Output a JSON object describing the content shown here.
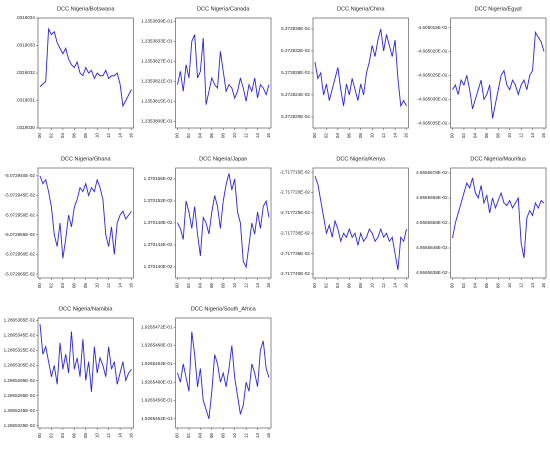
{
  "chart_data": [
    {
      "type": "line",
      "title": "DCC Nigeria/Botswana",
      "categories": [
        "00",
        null,
        null,
        null,
        "02",
        null,
        null,
        null,
        "04",
        null,
        null,
        null,
        "06",
        null,
        null,
        null,
        "08",
        null,
        null,
        null,
        "10",
        null,
        null,
        null,
        "12",
        null,
        null,
        null,
        "14",
        null,
        null,
        null,
        "16"
      ],
      "values": [
        0.03190315,
        0.03190316,
        0.03190317,
        0.03190336,
        0.03190334,
        0.03190335,
        0.03190331,
        0.03190329,
        0.03190327,
        0.03190329,
        0.03190325,
        0.03190323,
        0.03190322,
        0.03190324,
        0.0319032,
        0.03190319,
        0.03190322,
        0.0319032,
        0.03190321,
        0.03190318,
        0.0319032,
        0.03190319,
        0.03190319,
        0.03190321,
        0.03190318,
        0.03190319,
        0.03190319,
        0.0319032,
        0.03190316,
        0.03190308,
        0.0319031,
        0.03190312,
        0.03190314
      ],
      "color": "#2727d8",
      "ylim": [
        0.031903,
        0.0319034
      ],
      "yticks": [
        {
          "value": 0.031903,
          "label": ".0319030"
        },
        {
          "value": 0.0319031,
          "label": ".0319031"
        },
        {
          "value": 0.0319032,
          "label": ".0319032"
        },
        {
          "value": 0.0319033,
          "label": ".0319033"
        },
        {
          "value": 0.0319034,
          "label": ".0319034"
        }
      ]
    },
    {
      "type": "line",
      "title": "DCC Nigeria/Canada",
      "categories": [
        "00",
        null,
        null,
        null,
        "02",
        null,
        null,
        null,
        "04",
        null,
        null,
        null,
        "06",
        null,
        null,
        null,
        "08",
        null,
        null,
        null,
        "10",
        null,
        null,
        null,
        "12",
        null,
        null,
        null,
        "14",
        null,
        null,
        null,
        "16"
      ],
      "values": [
        0.1235382,
        0.12353824,
        0.12353818,
        0.12353826,
        0.12353822,
        0.12353833,
        0.12353835,
        0.12353822,
        0.12353824,
        0.12353834,
        0.12353814,
        0.12353818,
        0.12353822,
        0.1235382,
        0.12353819,
        0.1235383,
        0.12353824,
        0.12353818,
        0.1235382,
        0.12353819,
        0.12353816,
        0.12353818,
        0.12353822,
        0.12353819,
        0.12353815,
        0.1235382,
        0.12353818,
        0.12353822,
        0.12353816,
        0.1235382,
        0.12353819,
        0.12353817,
        0.1235382
      ],
      "color": "#2727d8",
      "ylim": [
        0.12353807,
        0.1235384
      ],
      "yticks": [
        {
          "value": 0.12353809,
          "label": "1.2353809E-01"
        },
        {
          "value": 0.12353815,
          "label": "1.2353815E-01"
        },
        {
          "value": 0.12353821,
          "label": "1.2353821E-01"
        },
        {
          "value": 0.12353827,
          "label": "1.2353827E-01"
        },
        {
          "value": 0.12353833,
          "label": "1.2353833E-01"
        },
        {
          "value": 0.12353839,
          "label": "1.2353839E-01"
        }
      ]
    },
    {
      "type": "line",
      "title": "DCC Nigeria/China",
      "categories": [
        "00",
        null,
        null,
        null,
        "02",
        null,
        null,
        null,
        "04",
        null,
        null,
        null,
        "06",
        null,
        null,
        null,
        "08",
        null,
        null,
        null,
        "10",
        null,
        null,
        null,
        "12",
        null,
        null,
        null,
        "14",
        null,
        null,
        null,
        "16"
      ],
      "values": [
        0.0527283,
        0.05272827,
        0.05272828,
        0.05272824,
        0.05272826,
        0.05272823,
        0.05272825,
        0.05272827,
        0.05272829,
        0.05272825,
        0.05272822,
        0.05272826,
        0.05272824,
        0.05272827,
        0.05272825,
        0.05272823,
        0.05272826,
        0.05272824,
        0.05272828,
        0.0527283,
        0.05272833,
        0.05272831,
        0.05272834,
        0.05272836,
        0.05272832,
        0.05272835,
        0.05272833,
        0.05272831,
        0.05272834,
        0.05272827,
        0.05272822,
        0.05272823,
        0.05272822
      ],
      "color": "#2727d8",
      "ylim": [
        0.05272818,
        0.05272838
      ],
      "yticks": [
        {
          "value": 0.0527282,
          "label": "5.272820E-02"
        },
        {
          "value": 0.05272824,
          "label": "5.272824E-02"
        },
        {
          "value": 0.05272828,
          "label": "5.272828E-02"
        },
        {
          "value": 0.05272832,
          "label": "5.272832E-02"
        },
        {
          "value": 0.05272836,
          "label": "5.272836E-02"
        }
      ]
    },
    {
      "type": "line",
      "title": "DCC Nigeria/Egypt",
      "categories": [
        "00",
        null,
        null,
        null,
        "02",
        null,
        null,
        null,
        "04",
        null,
        null,
        null,
        "06",
        null,
        null,
        null,
        "08",
        null,
        null,
        null,
        "10",
        null,
        null,
        null,
        "12",
        null,
        null,
        null,
        "14",
        null,
        null,
        null,
        "16"
      ],
      "values": [
        -0.04605028,
        -0.04605027,
        -0.04605029,
        -0.04605026,
        -0.04605027,
        -0.04605025,
        -0.04605028,
        -0.04605032,
        -0.0460503,
        -0.04605028,
        -0.04605026,
        -0.0460503,
        -0.04605029,
        -0.04605027,
        -0.04605034,
        -0.04605031,
        -0.04605028,
        -0.04605025,
        -0.04605024,
        -0.04605027,
        -0.04605028,
        -0.04605026,
        -0.04605027,
        -0.04605029,
        -0.04605027,
        -0.04605026,
        -0.04605028,
        -0.04605025,
        -0.04605024,
        -0.04605016,
        -0.04605017,
        -0.04605018,
        -0.0460502
      ],
      "color": "#2727d8",
      "ylim": [
        -0.04605036,
        -0.04605013
      ],
      "yticks": [
        {
          "value": -0.04605035,
          "label": "-4.605035E-02"
        },
        {
          "value": -0.0460503,
          "label": "-4.605030E-02"
        },
        {
          "value": -0.04605025,
          "label": "-4.605025E-02"
        },
        {
          "value": -0.0460502,
          "label": "-4.605020E-02"
        },
        {
          "value": -0.04605015,
          "label": "-4.605015E-02"
        }
      ]
    },
    {
      "type": "line",
      "title": "DCC Nigeria/Ghana",
      "categories": [
        "00",
        null,
        null,
        null,
        "02",
        null,
        null,
        null,
        "04",
        null,
        null,
        null,
        "06",
        null,
        null,
        null,
        "08",
        null,
        null,
        null,
        "10",
        null,
        null,
        null,
        "12",
        null,
        null,
        null,
        "14",
        null,
        null,
        null,
        "16"
      ],
      "values": [
        -0.0507294,
        -0.05072942,
        -0.05072941,
        -0.05072944,
        -0.05072948,
        -0.05072955,
        -0.05072958,
        -0.05072952,
        -0.05072961,
        -0.05072956,
        -0.0507295,
        -0.05072953,
        -0.05072948,
        -0.05072946,
        -0.05072943,
        -0.05072944,
        -0.05072942,
        -0.05072945,
        -0.05072943,
        -0.05072944,
        -0.05072941,
        -0.05072943,
        -0.05072946,
        -0.05072955,
        -0.05072958,
        -0.05072953,
        -0.0507296,
        -0.05072952,
        -0.0507295,
        -0.05072949,
        -0.05072951,
        -0.0507295,
        -0.05072949
      ],
      "color": "#2727d8",
      "ylim": [
        -0.05072966,
        -0.05072938
      ],
      "yticks": [
        {
          "value": -0.05072965,
          "label": "-5.072965E-02"
        },
        {
          "value": -0.0507296,
          "label": "-5.072960E-02"
        },
        {
          "value": -0.05072955,
          "label": "-5.072955E-02"
        },
        {
          "value": -0.0507295,
          "label": "-5.072950E-02"
        },
        {
          "value": -0.05072945,
          "label": "-5.072945E-02"
        },
        {
          "value": -0.0507294,
          "label": "-5.072940E-02"
        }
      ]
    },
    {
      "type": "line",
      "title": "DCC Nigeria/Japan",
      "categories": [
        "00",
        null,
        null,
        null,
        "02",
        null,
        null,
        null,
        "04",
        null,
        null,
        null,
        "06",
        null,
        null,
        null,
        "08",
        null,
        null,
        null,
        "10",
        null,
        null,
        null,
        "12",
        null,
        null,
        null,
        "14",
        null,
        null,
        null,
        "16"
      ],
      "values": [
        0.01370148,
        0.01370147,
        0.01370145,
        0.01370152,
        0.0137015,
        0.01370147,
        0.01370151,
        0.01370146,
        0.01370142,
        0.01370149,
        0.01370148,
        0.01370146,
        0.0137015,
        0.01370153,
        0.01370151,
        0.01370147,
        0.01370152,
        0.01370155,
        0.01370157,
        0.01370154,
        0.01370156,
        0.0137015,
        0.01370148,
        0.01370141,
        0.0137014,
        0.01370144,
        0.01370148,
        0.01370146,
        0.0137015,
        0.01370147,
        0.01370151,
        0.01370152,
        0.01370149
      ],
      "color": "#2727d8",
      "ylim": [
        0.01370138,
        0.01370158
      ],
      "yticks": [
        {
          "value": 0.0137014,
          "label": "1.370140E-02"
        },
        {
          "value": 0.01370144,
          "label": "1.370144E-02"
        },
        {
          "value": 0.01370148,
          "label": "1.370148E-02"
        },
        {
          "value": 0.01370152,
          "label": "1.370152E-02"
        },
        {
          "value": 0.01370156,
          "label": "1.370156E-02"
        }
      ]
    },
    {
      "type": "line",
      "title": "DCC Nigeria/Kenya",
      "categories": [
        "00",
        null,
        null,
        null,
        "02",
        null,
        null,
        null,
        "04",
        null,
        null,
        null,
        "06",
        null,
        null,
        null,
        "08",
        null,
        null,
        null,
        "10",
        null,
        null,
        null,
        "12",
        null,
        null,
        null,
        "14",
        null,
        null,
        null,
        "16"
      ],
      "values": [
        -0.02717716,
        -0.02717718,
        -0.02717722,
        -0.02717726,
        -0.0271773,
        -0.02717728,
        -0.02717731,
        -0.02717727,
        -0.02717729,
        -0.02717732,
        -0.0271773,
        -0.02717731,
        -0.02717729,
        -0.02717731,
        -0.0271773,
        -0.02717733,
        -0.0271773,
        -0.02717732,
        -0.02717731,
        -0.02717729,
        -0.0271773,
        -0.02717732,
        -0.02717731,
        -0.02717729,
        -0.02717731,
        -0.0271773,
        -0.02717732,
        -0.02717731,
        -0.02717735,
        -0.02717739,
        -0.02717731,
        -0.02717732,
        -0.02717729
      ],
      "color": "#2727d8",
      "ylim": [
        -0.02717741,
        -0.02717714
      ],
      "yticks": [
        {
          "value": -0.0271774,
          "label": "-2.717740E-02"
        },
        {
          "value": -0.02717735,
          "label": "-2.717735E-02"
        },
        {
          "value": -0.0271773,
          "label": "-2.717730E-02"
        },
        {
          "value": -0.02717725,
          "label": "-2.717725E-02"
        },
        {
          "value": -0.0271772,
          "label": "-2.717720E-02"
        },
        {
          "value": -0.02717715,
          "label": "-2.717715E-02"
        }
      ]
    },
    {
      "type": "line",
      "title": "DCC Nigeria/Mauritius",
      "categories": [
        "00",
        null,
        null,
        null,
        "02",
        null,
        null,
        null,
        "04",
        null,
        null,
        null,
        "06",
        null,
        null,
        null,
        "08",
        null,
        null,
        null,
        "10",
        null,
        null,
        null,
        "12",
        null,
        null,
        null,
        "14",
        null,
        null,
        null,
        "16"
      ],
      "values": [
        0.049565652,
        0.049565658,
        0.049565662,
        0.049565666,
        0.04956567,
        0.049565674,
        0.049565672,
        0.049565676,
        0.04956567,
        0.049565668,
        0.049565673,
        0.049565666,
        0.049565669,
        0.049565662,
        0.049565668,
        0.049565664,
        0.049565667,
        0.04956567,
        0.049565666,
        0.049565665,
        0.049565667,
        0.049565664,
        0.049565666,
        0.049565668,
        0.04956565,
        0.049565644,
        0.04956566,
        0.049565663,
        0.049565661,
        0.049565666,
        0.049565664,
        0.049565667,
        0.049565666
      ],
      "color": "#2727d8",
      "ylim": [
        0.049565636,
        0.04956568
      ],
      "yticks": [
        {
          "value": 0.049565638,
          "label": "4.9565638E-02"
        },
        {
          "value": 0.049565648,
          "label": "4.9565648E-02"
        },
        {
          "value": 0.049565658,
          "label": "4.9565658E-02"
        },
        {
          "value": 0.049565668,
          "label": "4.9565668E-02"
        },
        {
          "value": 0.049565678,
          "label": "4.9565678E-02"
        }
      ]
    },
    {
      "type": "line",
      "title": "DCC Nigeria/Namibia",
      "categories": [
        "00",
        null,
        null,
        null,
        "02",
        null,
        null,
        null,
        "04",
        null,
        null,
        null,
        "06",
        null,
        null,
        null,
        "08",
        null,
        null,
        null,
        "10",
        null,
        null,
        null,
        "12",
        null,
        null,
        null,
        "14",
        null,
        null,
        null,
        "16"
      ],
      "values": [
        0.01286536,
        0.01286532,
        0.01286533,
        0.01286531,
        0.01286529,
        0.012865305,
        0.01286528,
        0.012865335,
        0.0128653,
        0.01286532,
        0.012865295,
        0.01286535,
        0.0128653,
        0.012865315,
        0.01286529,
        0.01286534,
        0.012865285,
        0.01286531,
        0.01286527,
        0.01286533,
        0.012865295,
        0.012865315,
        0.012865305,
        0.01286529,
        0.01286533,
        0.0128653,
        0.01286531,
        0.01286528,
        0.012865295,
        0.01286531,
        0.012865285,
        0.012865295,
        0.0128653
      ],
      "color": "#2727d8",
      "ylim": [
        0.012865222,
        0.012865368
      ],
      "yticks": [
        {
          "value": 0.012865225,
          "label": "1.2865225E-02"
        },
        {
          "value": 0.012865245,
          "label": "1.2865245E-02"
        },
        {
          "value": 0.012865265,
          "label": "1.2865265E-02"
        },
        {
          "value": 0.012865285,
          "label": "1.2865285E-02"
        },
        {
          "value": 0.012865305,
          "label": "1.2865305E-02"
        },
        {
          "value": 0.012865325,
          "label": "1.2865325E-02"
        },
        {
          "value": 0.012865345,
          "label": "1.2865345E-02"
        },
        {
          "value": 0.012865365,
          "label": "1.2865365E-02"
        }
      ]
    },
    {
      "type": "line",
      "title": "DCC Nigeria/South_Africa",
      "categories": [
        "00",
        null,
        null,
        null,
        "02",
        null,
        null,
        null,
        "04",
        null,
        null,
        null,
        "06",
        null,
        null,
        null,
        "08",
        null,
        null,
        null,
        "10",
        null,
        null,
        null,
        "12",
        null,
        null,
        null,
        "14",
        null,
        null,
        null,
        "16"
      ],
      "values": [
        0.19265462,
        0.1926546,
        0.19265464,
        0.19265461,
        0.19265458,
        0.19265471,
        0.19265466,
        0.19265459,
        0.19265463,
        0.19265456,
        0.19265454,
        0.19265452,
        0.19265458,
        0.19265466,
        0.19265464,
        0.1926546,
        0.19265462,
        0.19265459,
        0.19265463,
        0.19265468,
        0.19265461,
        0.19265457,
        0.19265453,
        0.19265455,
        0.1926546,
        0.19265458,
        0.19265464,
        0.19265462,
        0.19265459,
        0.19265467,
        0.19265469,
        0.19265463,
        0.19265461
      ],
      "color": "#2727d8",
      "ylim": [
        0.1926545,
        0.19265474
      ],
      "yticks": [
        {
          "value": 0.19265452,
          "label": "1.9265452E-01"
        },
        {
          "value": 0.19265456,
          "label": "1.9265456E-01"
        },
        {
          "value": 0.1926546,
          "label": "1.9265460E-01"
        },
        {
          "value": 0.19265464,
          "label": "1.9265464E-01"
        },
        {
          "value": 0.19265468,
          "label": "1.9265468E-01"
        },
        {
          "value": 0.19265472,
          "label": "1.9265472E-01"
        }
      ]
    }
  ]
}
